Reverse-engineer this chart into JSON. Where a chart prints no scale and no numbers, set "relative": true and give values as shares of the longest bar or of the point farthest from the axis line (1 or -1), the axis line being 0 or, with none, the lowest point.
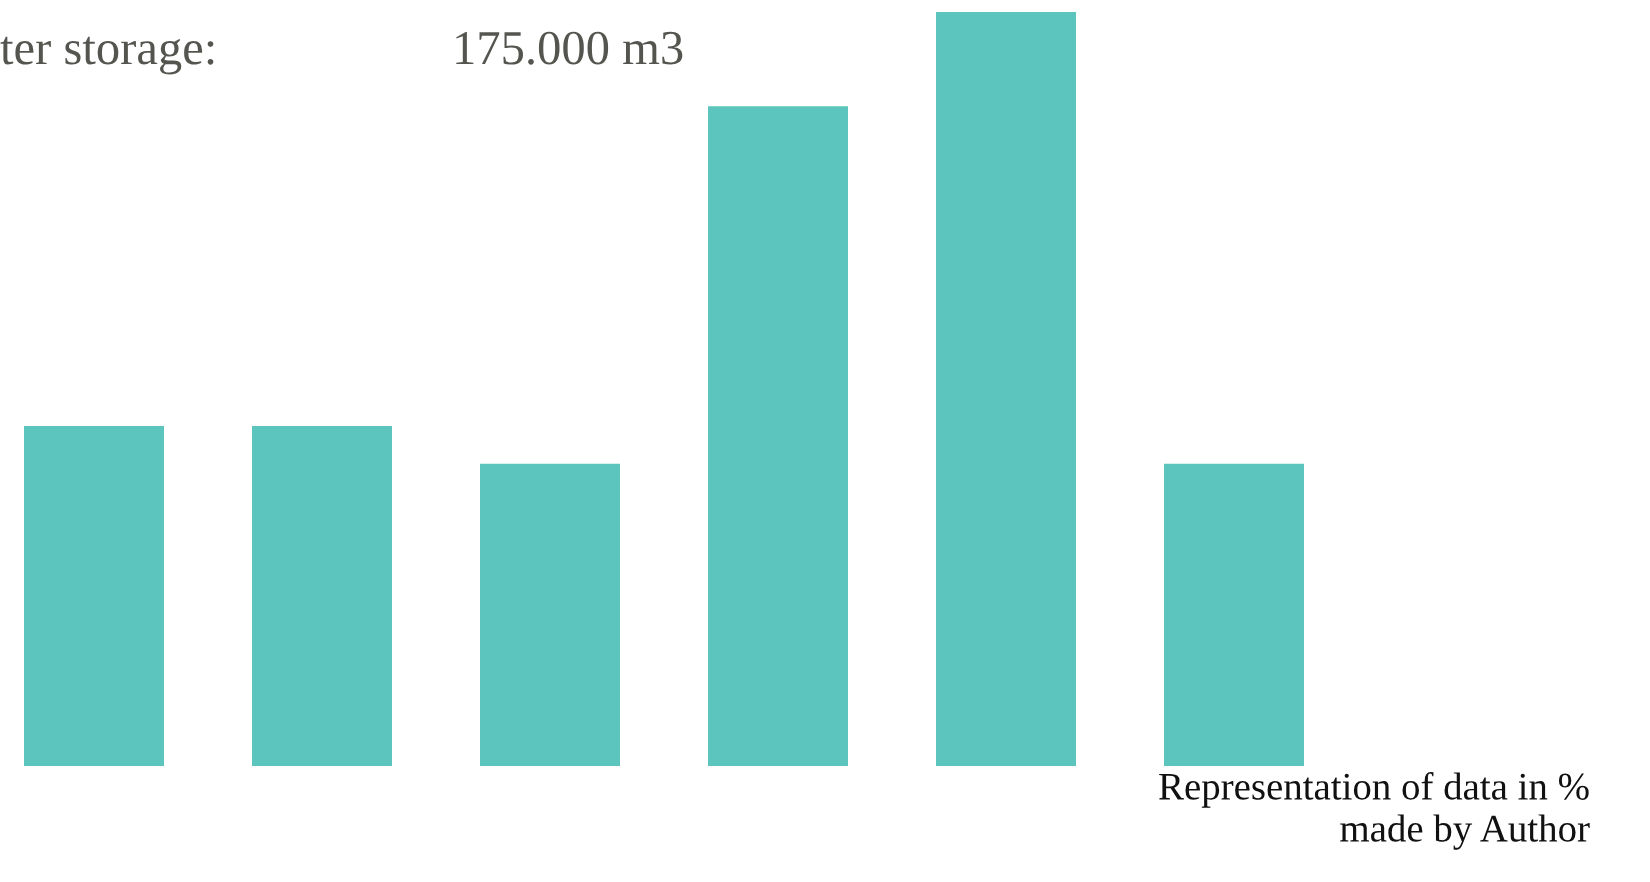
{
  "chart_data": {
    "type": "bar",
    "relative": true,
    "categories": [
      null,
      null,
      null,
      null,
      null,
      null
    ],
    "values": [
      0.451,
      0.451,
      0.401,
      0.875,
      1,
      0.401
    ],
    "color": "#5cc5bd",
    "annotations": [
      "ter storage:",
      "175.000 m3",
      "Representation of data in %\nmade by Author"
    ]
  }
}
